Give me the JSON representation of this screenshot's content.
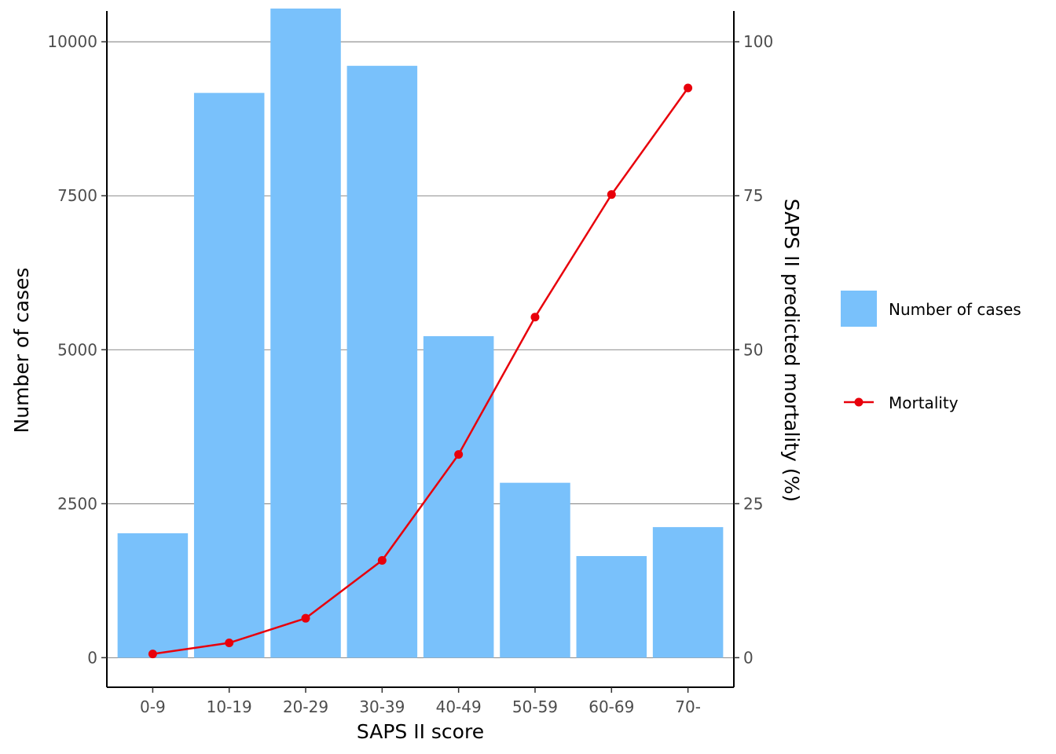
{
  "chart_data": {
    "type": "bar",
    "categories": [
      "0-9",
      "10-19",
      "20-29",
      "30-39",
      "40-49",
      "50-59",
      "60-69",
      "70-"
    ],
    "xlabel": "SAPS II score",
    "ylabel": "Number of cases",
    "y2label": "SAPS II predicted mortality (%)",
    "ylim": [
      -480,
      10500
    ],
    "y_ticks": [
      0,
      2500,
      5000,
      7500,
      10000
    ],
    "y_tick_labels": [
      "0",
      "2500",
      "5000",
      "7500",
      "10000"
    ],
    "y2lim": [
      -4.8,
      105
    ],
    "y2_ticks": [
      0,
      25,
      50,
      75,
      100
    ],
    "y2_tick_labels": [
      "0",
      "25",
      "50",
      "75",
      "100"
    ],
    "grid": "horizontal major",
    "legend_position": "right",
    "series": [
      {
        "name": "Number of cases",
        "type": "bar",
        "axis": "left",
        "color": "#79C1FB",
        "values": [
          2020,
          9170,
          10540,
          9610,
          5220,
          2840,
          1650,
          2120
        ]
      },
      {
        "name": "Mortality",
        "type": "line",
        "axis": "right",
        "color": "#E8000B",
        "values": [
          0.6,
          2.4,
          6.4,
          15.8,
          33.0,
          55.3,
          75.2,
          92.5
        ]
      }
    ]
  }
}
